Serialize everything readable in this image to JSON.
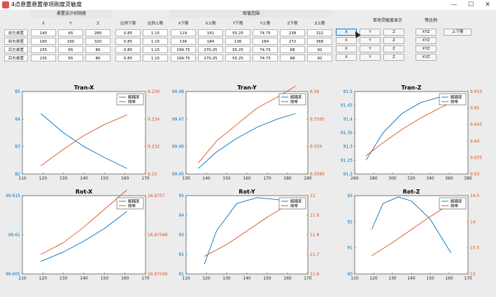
{
  "window": {
    "title": "4点悬置悬置单项刚度灵敏度",
    "minimize": "—",
    "maximize": "☐",
    "close": "✕"
  },
  "groups": {
    "design": "悬置设计初刚度",
    "range": "取值范围",
    "single": "单项灵敏度显示",
    "ratio": "等比例"
  },
  "columns": [
    "X",
    "Y",
    "Z",
    "比例下限",
    "比例上限",
    "X下限",
    "X上限",
    "Y下限",
    "Y上限",
    "Z下限",
    "Z上限"
  ],
  "rows": [
    {
      "label": "前左悬置",
      "values": [
        "140",
        "65",
        "280",
        "0.85",
        "1.15",
        "119",
        "161",
        "55.25",
        "74.75",
        "238",
        "322"
      ]
    },
    {
      "label": "前右悬置",
      "values": [
        "160",
        "160",
        "320",
        "0.85",
        "1.15",
        "136",
        "184",
        "136",
        "184",
        "272",
        "368"
      ]
    },
    {
      "label": "后左悬置",
      "values": [
        "235",
        "65",
        "80",
        "0.85",
        "1.15",
        "199.75",
        "270.25",
        "55.25",
        "74.75",
        "68",
        "92"
      ]
    },
    {
      "label": "后右悬置",
      "values": [
        "235",
        "65",
        "80",
        "0.85",
        "1.15",
        "199.75",
        "270.25",
        "55.25",
        "74.75",
        "68",
        "92"
      ]
    }
  ],
  "single_buttons": [
    "X",
    "Y",
    "Z"
  ],
  "ratio_button": "XYZ",
  "updown_button": "上下限",
  "colors": {
    "decoupling": "#0072bd",
    "frequency": "#d95319"
  },
  "chart_data": [
    {
      "type": "line",
      "title": "Tran-X",
      "series": [
        {
          "name": "解耦率",
          "axis": "left",
          "x": [
            119,
            130,
            140,
            150,
            161
          ],
          "y": [
            84.2,
            83.5,
            83.0,
            82.6,
            82.2
          ]
        },
        {
          "name": "频率",
          "axis": "right",
          "x": [
            119,
            130,
            140,
            150,
            161
          ],
          "y": [
            9.2306,
            9.2318,
            9.2328,
            9.2336,
            9.2343
          ]
        }
      ],
      "xlim": [
        110,
        170
      ],
      "xticks": [
        "110",
        "120",
        "130",
        "140",
        "150",
        "160",
        "170"
      ],
      "ylim_left": [
        82,
        85
      ],
      "yticks_left": [
        "82",
        "83",
        "84",
        "85"
      ],
      "ylim_right": [
        9.23,
        9.236
      ],
      "yticks_right": [
        "9.23",
        "9.232",
        "9.234",
        "9.236"
      ],
      "legend": "top-right"
    },
    {
      "type": "line",
      "title": "Tran-Y",
      "series": [
        {
          "name": "解耦率",
          "axis": "left",
          "x": [
            136,
            145,
            155,
            165,
            175,
            184
          ],
          "y": [
            99.452,
            99.458,
            99.463,
            99.467,
            99.47,
            99.472
          ]
        },
        {
          "name": "频率",
          "axis": "right",
          "x": [
            136,
            145,
            155,
            165,
            175,
            184
          ],
          "y": [
            6.5587,
            6.5591,
            6.5594,
            6.5597,
            6.5599,
            6.5601
          ]
        }
      ],
      "xlim": [
        130,
        190
      ],
      "xticks": [
        "130",
        "140",
        "150",
        "160",
        "170",
        "180",
        "190"
      ],
      "ylim_left": [
        99.45,
        99.48
      ],
      "yticks_left": [
        "99.45",
        "99.46",
        "99.47",
        "99.48"
      ],
      "ylim_right": [
        6.5585,
        6.56
      ],
      "yticks_right": [
        "6.5585",
        "6.559",
        "6.5595",
        "6.56"
      ],
      "legend": "top-right"
    },
    {
      "type": "line",
      "title": "Tran-Z",
      "series": [
        {
          "name": "解耦率",
          "axis": "left",
          "x": [
            272,
            290,
            310,
            330,
            350,
            368
          ],
          "y": [
            91.25,
            91.35,
            91.42,
            91.46,
            91.48,
            91.49
          ]
        },
        {
          "name": "频率",
          "axis": "right",
          "x": [
            272,
            290,
            310,
            330,
            350,
            368
          ],
          "y": [
            9.6355,
            9.6395,
            9.6435,
            9.647,
            9.65,
            9.6525
          ]
        }
      ],
      "xlim": [
        260,
        380
      ],
      "xticks": [
        "260",
        "280",
        "300",
        "320",
        "340",
        "360",
        "380"
      ],
      "ylim_left": [
        91.2,
        91.5
      ],
      "yticks_left": [
        "91.2",
        "91.25",
        "91.3",
        "91.35",
        "91.4",
        "91.45",
        "91.5"
      ],
      "ylim_right": [
        9.63,
        9.655
      ],
      "yticks_right": [
        "9.63",
        "9.635",
        "9.64",
        "9.645",
        "9.65",
        "9.655"
      ],
      "legend": "top-right"
    },
    {
      "type": "line",
      "title": "Rot-X",
      "series": [
        {
          "name": "解耦率",
          "axis": "left",
          "x": [
            119,
            130,
            140,
            150,
            161
          ],
          "y": [
            99.6066,
            99.6078,
            99.6092,
            99.6108,
            99.613
          ]
        },
        {
          "name": "频率",
          "axis": "right",
          "x": [
            119,
            130,
            140,
            150,
            161
          ],
          "y": [
            16.97567,
            16.975676,
            16.975684,
            16.975693,
            16.975703
          ]
        }
      ],
      "xlim": [
        110,
        170
      ],
      "xticks": [
        "110",
        "120",
        "130",
        "140",
        "150",
        "160",
        "170"
      ],
      "ylim_left": [
        99.605,
        99.615
      ],
      "yticks_left": [
        "99.605",
        "99.61",
        "99.615"
      ],
      "ylim_right": [
        16.97566,
        16.9757
      ],
      "yticks_right": [
        "16.97566",
        "16.97568",
        "16.9757"
      ],
      "legend": "top-right"
    },
    {
      "type": "line",
      "title": "Rot-Y",
      "series": [
        {
          "name": "解耦率",
          "axis": "left",
          "x": [
            119,
            125,
            135,
            145,
            155,
            161
          ],
          "y": [
            91.5,
            93.2,
            94.6,
            94.9,
            94.8,
            94.6
          ]
        },
        {
          "name": "频率",
          "axis": "right",
          "x": [
            119,
            130,
            140,
            150,
            161
          ],
          "y": [
            11.69,
            11.75,
            11.82,
            11.89,
            11.96
          ]
        }
      ],
      "xlim": [
        110,
        170
      ],
      "xticks": [
        "110",
        "120",
        "130",
        "140",
        "150",
        "160",
        "170"
      ],
      "ylim_left": [
        91,
        95
      ],
      "yticks_left": [
        "91",
        "92",
        "93",
        "94",
        "95"
      ],
      "ylim_right": [
        11.6,
        12
      ],
      "yticks_right": [
        "11.6",
        "11.7",
        "11.8",
        "11.9",
        "12"
      ],
      "legend": "top-right"
    },
    {
      "type": "line",
      "title": "Rot-Z",
      "series": [
        {
          "name": "解耦率",
          "axis": "left",
          "x": [
            119,
            125,
            133,
            140,
            150,
            161
          ],
          "y": [
            91.7,
            92.7,
            92.95,
            92.8,
            92.1,
            90.8
          ]
        },
        {
          "name": "频率",
          "axis": "right",
          "x": [
            119,
            130,
            140,
            150,
            161
          ],
          "y": [
            13.35,
            13.6,
            13.85,
            14.1,
            14.35
          ]
        }
      ],
      "xlim": [
        110,
        170
      ],
      "xticks": [
        "110",
        "120",
        "130",
        "140",
        "150",
        "160",
        "170"
      ],
      "ylim_left": [
        90,
        93
      ],
      "yticks_left": [
        "90",
        "91",
        "92",
        "93"
      ],
      "ylim_right": [
        13,
        14.5
      ],
      "yticks_right": [
        "13",
        "13.5",
        "14",
        "14.5"
      ],
      "legend": "top-right"
    }
  ]
}
